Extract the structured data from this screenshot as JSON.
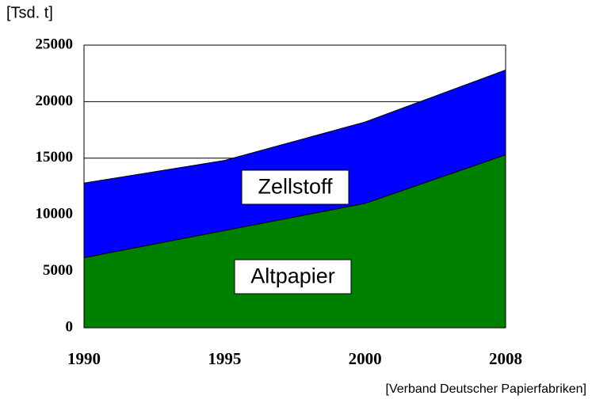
{
  "chart_data": {
    "type": "area",
    "stacked": true,
    "y_label": "[Tsd. t]",
    "source": "[Verband Deutscher Papierfabriken]",
    "categories": [
      "1990",
      "1995",
      "2000",
      "2008"
    ],
    "series": [
      {
        "name": "Altpapier",
        "color": "#008000",
        "values": [
          6200,
          8600,
          11000,
          15300
        ]
      },
      {
        "name": "Zellstoff",
        "color": "#0000ff",
        "values": [
          6600,
          6200,
          7200,
          7500
        ]
      }
    ],
    "ylim": [
      0,
      25000
    ],
    "yticks": [
      0,
      5000,
      10000,
      15000,
      20000,
      25000
    ],
    "grid": true
  }
}
